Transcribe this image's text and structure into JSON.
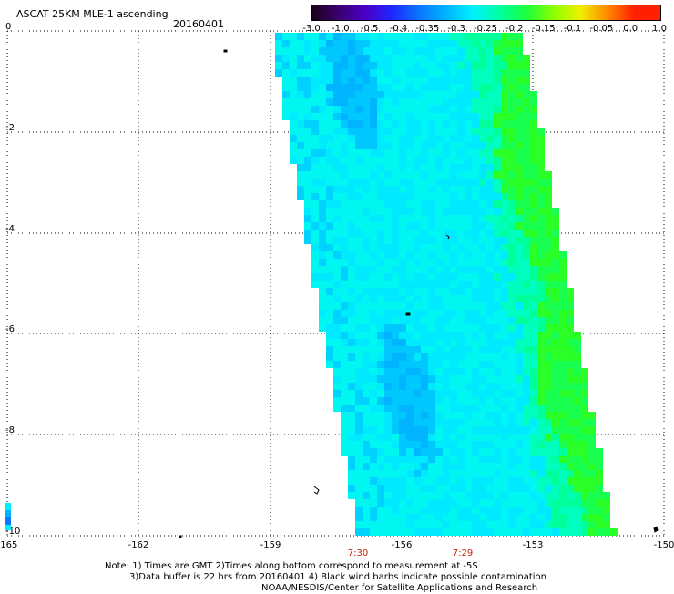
{
  "header": {
    "title": "ASCAT 25KM MLE-1 ascending",
    "date": "20160401"
  },
  "colorbar": {
    "labels": [
      "-3.0",
      "-1.0",
      "-0.5",
      "-0.4",
      "-0.35",
      "-0.3",
      "-0.25",
      "-0.2",
      "-0.15",
      "-0.1",
      "-0.05",
      "0.0",
      "1.0"
    ],
    "colors": [
      "#1a001a",
      "#3b0070",
      "#4a00c8",
      "#1e28ff",
      "#0a78ff",
      "#00b4ff",
      "#00f0ff",
      "#00ffa0",
      "#1aff3c",
      "#8cff00",
      "#f0f000",
      "#ff8c00",
      "#ff2000"
    ]
  },
  "map": {
    "lat_ticks": [
      "0",
      "-2",
      "-4",
      "-6",
      "-8",
      "-10"
    ],
    "lon_ticks": [
      "-165",
      "-162",
      "-159",
      "-156",
      "-153",
      "-150"
    ],
    "time_labels": [
      "7:30",
      "7:29"
    ]
  },
  "notes": {
    "line1": "Note: 1) Times are GMT 2)Times along bottom correspond to measurement at -5S",
    "line2": "3)Data buffer is 22 hrs from 20160401 4) Black wind barbs indicate possible contamination",
    "line3": "NOAA/NESDIS/Center for Satellite Applications and Research"
  }
}
